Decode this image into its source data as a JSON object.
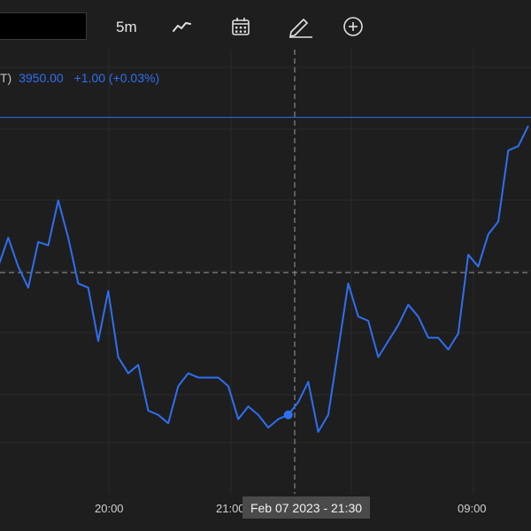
{
  "toolbar": {
    "interval": "5m",
    "icons": [
      "line-chart-icon",
      "calendar-icon",
      "pencil-icon",
      "add-circle-icon"
    ]
  },
  "legend": {
    "symbol_tail": "T)",
    "price": "3950.00",
    "change": "+1.00 (+0.03%)"
  },
  "time_axis": {
    "labels": [
      "20:00",
      "21:00",
      "09:00"
    ],
    "crosshair_label": "Feb 07 2023 - 21:30"
  },
  "colors": {
    "background": "#1e1e1e",
    "line": "#2f6ff0",
    "grid": "#2b2b2b"
  },
  "chart_data": {
    "type": "line",
    "series": [
      {
        "values": [
          3932.4,
          3935.8,
          3932.4,
          3929.9,
          3935.3,
          3934.9,
          3940.2,
          3935.8,
          3930.4,
          3929.9,
          3923.6,
          3929.5,
          3921.7,
          3919.8,
          3920.8,
          3915.4,
          3914.9,
          3913.9,
          3918.3,
          3919.8,
          3919.3,
          3919.3,
          3919.3,
          3918.3,
          3914.4,
          3915.9,
          3914.9,
          3913.4,
          3914.4,
          3914.9,
          3916.4,
          3918.8,
          3912.9,
          3914.9,
          3922.6,
          3930.4,
          3926.5,
          3926.0,
          3921.7,
          3923.6,
          3925.5,
          3927.9,
          3926.5,
          3924.0,
          3924.0,
          3922.6,
          3924.5,
          3933.8,
          3932.4,
          3936.2,
          3937.7,
          3946.1,
          3946.6,
          3949.0
        ]
      }
    ],
    "reference_price": 3950.0,
    "crosshair_time": "Feb 07 2023 - 21:30",
    "ylim": [
      3906.0,
      3958.0
    ],
    "grid": true
  }
}
